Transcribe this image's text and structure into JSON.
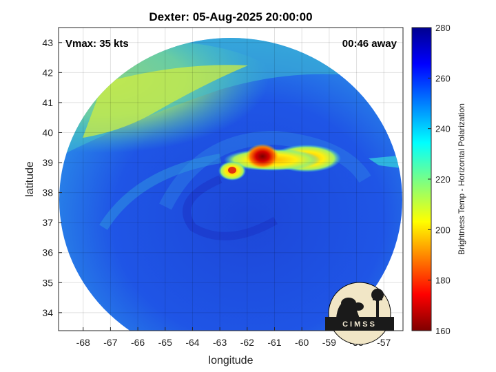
{
  "chart_data": {
    "type": "heatmap",
    "title": "Dexter: 05-Aug-2025 20:00:00",
    "xlabel": "longitude",
    "ylabel": "latitude",
    "xlim": [
      -68.9,
      -56.3
    ],
    "ylim": [
      33.4,
      43.5
    ],
    "x_ticks": [
      -68,
      -67,
      -66,
      -65,
      -64,
      -63,
      -62,
      -61,
      -60,
      -59,
      -58,
      -57
    ],
    "y_ticks": [
      34,
      35,
      36,
      37,
      38,
      39,
      40,
      41,
      42,
      43
    ],
    "grid": true,
    "annotations": {
      "vmax": "Vmax: 35 kts",
      "time_offset": "00:46 away"
    },
    "colorbar": {
      "label": "Brightness Temp - Horizontal Polarization",
      "range": [
        160,
        280
      ],
      "ticks": [
        160,
        180,
        200,
        220,
        240,
        260,
        280
      ],
      "colormap": "jet"
    },
    "swath": {
      "center_lon": -62.4,
      "center_lat": 38.0,
      "radius_deg_lon": 6.2
    },
    "features": [
      {
        "name": "core",
        "lon": -61.3,
        "lat": 39.15,
        "value": 165
      },
      {
        "name": "west-cell",
        "lon": -62.5,
        "lat": 38.7,
        "value": 200
      },
      {
        "name": "east-band",
        "lon": -59.2,
        "lat": 39.2,
        "value": 208
      },
      {
        "name": "northwest-dry-region",
        "lon": -66.0,
        "lat": 40.5,
        "value": 218
      },
      {
        "name": "background-ocean",
        "lon": -62.0,
        "lat": 36.5,
        "value": 258
      }
    ]
  },
  "logo": {
    "text": "CIMSS"
  }
}
